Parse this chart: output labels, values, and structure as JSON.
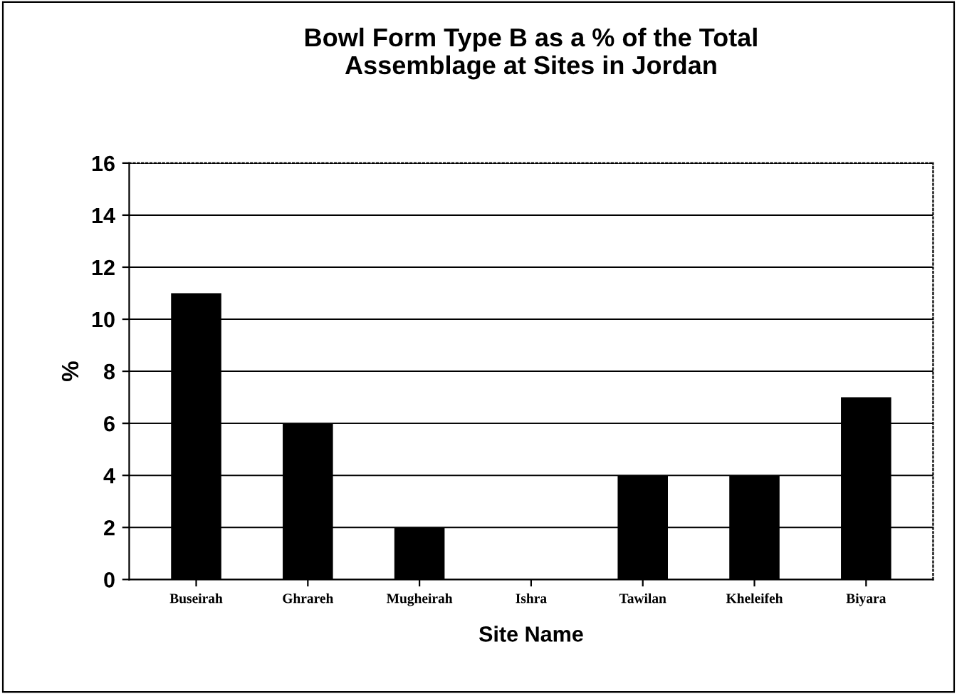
{
  "chart_data": {
    "type": "bar",
    "title": "Bowl Form Type B as a % of the Total\nAssemblage at Sites in Jordan",
    "xlabel": "Site Name",
    "ylabel": "%",
    "categories": [
      "Buseirah",
      "Ghrareh",
      "Mugheirah",
      "Ishra",
      "Tawilan",
      "Kheleifeh",
      "Biyara"
    ],
    "values": [
      11,
      6,
      2,
      0,
      4,
      4,
      7
    ],
    "color": "#000000",
    "ylim": [
      0,
      16
    ],
    "yticks": [
      0,
      2,
      4,
      6,
      8,
      10,
      12,
      14,
      16
    ],
    "grid": "y"
  }
}
